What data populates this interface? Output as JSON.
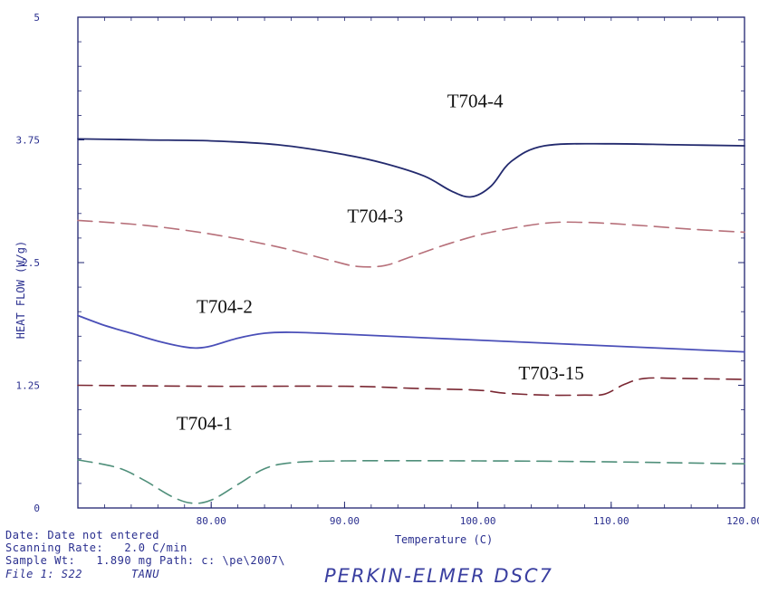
{
  "chart_data": {
    "type": "line",
    "instrument": "PERKIN-ELMER DSC7",
    "xlabel": "Temperature (C)",
    "ylabel": "HEAT FLOW (W/g)",
    "xlim": [
      70,
      120
    ],
    "ylim": [
      0,
      5
    ],
    "x_ticks": [
      "80.00",
      "90.00",
      "100.00",
      "110.00",
      "120.00"
    ],
    "x_tick_values": [
      80,
      90,
      100,
      110,
      120
    ],
    "y_ticks": [
      "0",
      "1.25",
      "2.5",
      "3.75",
      "5"
    ],
    "y_tick_values": [
      0,
      1.25,
      2.5,
      3.75,
      5
    ],
    "series": [
      {
        "name": "T704-4",
        "color": "#232a6e",
        "style": "solid",
        "x": [
          70,
          75,
          80,
          85,
          90,
          93,
          96,
          98,
          99.5,
          101,
          102.5,
          105,
          110,
          115,
          120
        ],
        "y": [
          3.76,
          3.75,
          3.74,
          3.7,
          3.6,
          3.51,
          3.38,
          3.23,
          3.17,
          3.28,
          3.53,
          3.69,
          3.71,
          3.7,
          3.69
        ]
      },
      {
        "name": "T704-3",
        "color": "#b7707a",
        "style": "dashed",
        "x": [
          70,
          75,
          80,
          85,
          89,
          91,
          93,
          95,
          98,
          101,
          105,
          108,
          112,
          116,
          120
        ],
        "y": [
          2.93,
          2.88,
          2.79,
          2.66,
          2.52,
          2.46,
          2.47,
          2.56,
          2.7,
          2.81,
          2.9,
          2.91,
          2.88,
          2.84,
          2.81
        ]
      },
      {
        "name": "T704-2",
        "color": "#4a4fb8",
        "style": "solid",
        "x": [
          70,
          72,
          74,
          76,
          78,
          79,
          80,
          82,
          84,
          86,
          90,
          95,
          100,
          110,
          120
        ],
        "y": [
          1.96,
          1.86,
          1.78,
          1.7,
          1.64,
          1.63,
          1.65,
          1.73,
          1.78,
          1.79,
          1.77,
          1.74,
          1.71,
          1.65,
          1.59
        ]
      },
      {
        "name": "T703-15",
        "color": "#7a2732",
        "style": "dashed",
        "x": [
          70,
          80,
          90,
          95,
          100,
          102,
          105,
          108,
          109.5,
          111,
          112.5,
          115,
          120
        ],
        "y": [
          1.25,
          1.24,
          1.24,
          1.22,
          1.2,
          1.17,
          1.15,
          1.15,
          1.16,
          1.26,
          1.32,
          1.32,
          1.31
        ]
      },
      {
        "name": "T704-1",
        "color": "#4f8f7a",
        "style": "dashed",
        "x": [
          70,
          73,
          75,
          77,
          78.5,
          80,
          82,
          84,
          86,
          90,
          100,
          110,
          120
        ],
        "y": [
          0.49,
          0.41,
          0.28,
          0.12,
          0.05,
          0.08,
          0.24,
          0.4,
          0.46,
          0.48,
          0.48,
          0.47,
          0.45
        ]
      }
    ],
    "annotations": [
      {
        "text": "T704-4",
        "series": "T704-4",
        "x": 99.8,
        "y": 4.08
      },
      {
        "text": "T704-3",
        "series": "T704-3",
        "x": 92.3,
        "y": 2.91
      },
      {
        "text": "T704-2",
        "series": "T704-2",
        "x": 81.0,
        "y": 1.99
      },
      {
        "text": "T703-15",
        "series": "T703-15",
        "x": 105.5,
        "y": 1.31
      },
      {
        "text": "T704-1",
        "series": "T704-1",
        "x": 79.5,
        "y": 0.8
      }
    ]
  },
  "footer": {
    "date_line": "Date: Date not entered",
    "scan_line": "Scanning Rate:   2.0 C/min",
    "sample_line": "Sample Wt:   1.890 mg Path: c: \\pe\\2007\\",
    "file_line": "File 1: S22       TANU",
    "brand": "PERKIN-ELMER DSC7"
  },
  "colors": {
    "frame": "#1f2470",
    "axis_text": "#2a2f8f"
  }
}
